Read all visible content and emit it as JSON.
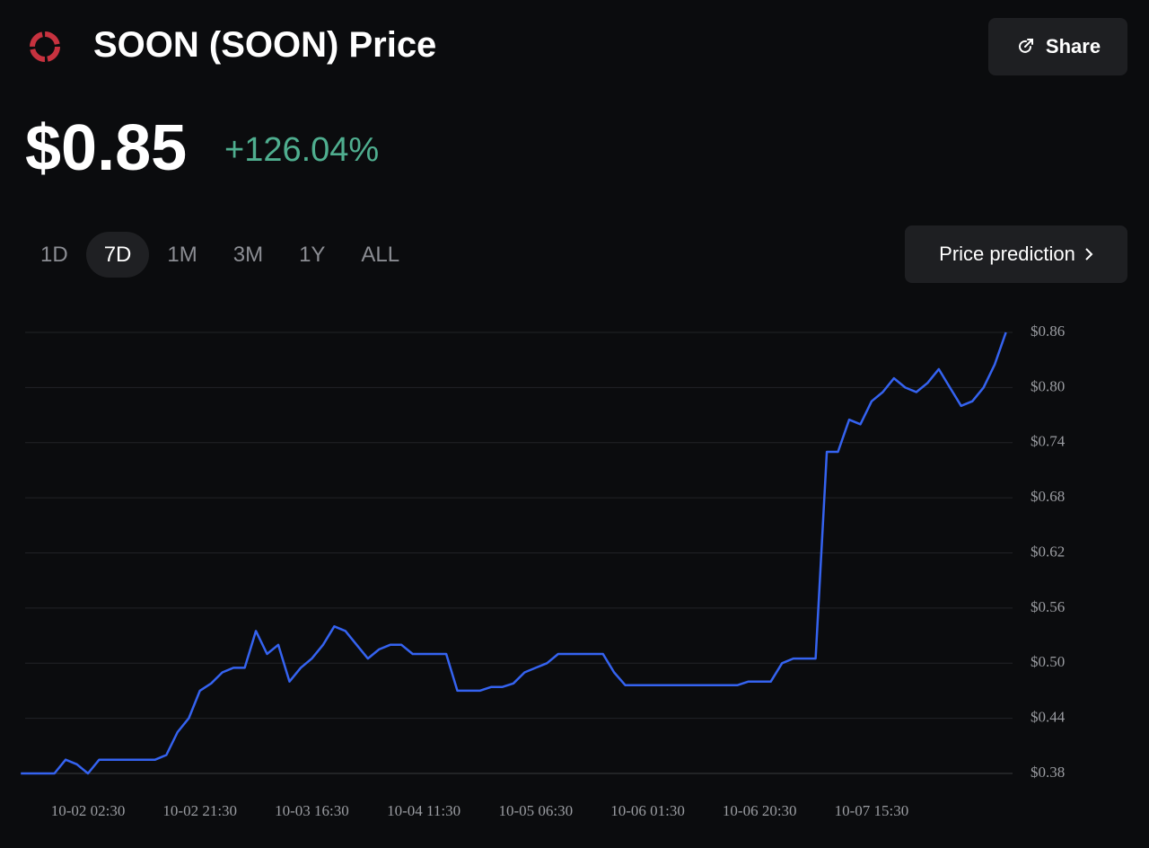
{
  "header": {
    "title": "SOON (SOON) Price",
    "share": "Share",
    "price": "$0.85",
    "change": "+126.04%"
  },
  "tabs": [
    "1D",
    "7D",
    "1M",
    "3M",
    "1Y",
    "ALL"
  ],
  "prediction": "Price prediction",
  "chart_data": {
    "type": "line",
    "categories": [
      null,
      null,
      null,
      null,
      null,
      null,
      "10-02 02:30",
      null,
      null,
      null,
      null,
      null,
      null,
      null,
      null,
      null,
      "10-02 21:30",
      null,
      null,
      null,
      null,
      null,
      null,
      null,
      null,
      null,
      "10-03 16:30",
      null,
      null,
      null,
      null,
      null,
      null,
      null,
      null,
      null,
      "10-04 11:30",
      null,
      null,
      null,
      null,
      null,
      null,
      null,
      null,
      null,
      "10-05 06:30",
      null,
      null,
      null,
      null,
      null,
      null,
      null,
      null,
      null,
      "10-06 01:30",
      null,
      null,
      null,
      null,
      null,
      null,
      null,
      null,
      null,
      "10-06 20:30",
      null,
      null,
      null,
      null,
      null,
      null,
      null,
      null,
      null,
      "10-07 15:30",
      null,
      null,
      null,
      null,
      null,
      null,
      null,
      null,
      null,
      null,
      null,
      null
    ],
    "series": [
      {
        "color": "#3563f0",
        "values": [
          0.38,
          0.38,
          0.38,
          0.38,
          0.395,
          0.39,
          0.38,
          0.395,
          0.395,
          0.395,
          0.395,
          0.395,
          0.395,
          0.4,
          0.425,
          0.44,
          0.47,
          0.478,
          0.49,
          0.495,
          0.495,
          0.535,
          0.51,
          0.52,
          0.48,
          0.495,
          0.505,
          0.52,
          0.54,
          0.535,
          0.52,
          0.505,
          0.515,
          0.52,
          0.52,
          0.51,
          0.51,
          0.51,
          0.51,
          0.47,
          0.47,
          0.47,
          0.474,
          0.474,
          0.478,
          0.49,
          0.495,
          0.5,
          0.51,
          0.51,
          0.51,
          0.51,
          0.51,
          0.49,
          0.476,
          0.476,
          0.476,
          0.476,
          0.476,
          0.476,
          0.476,
          0.476,
          0.476,
          0.476,
          0.476,
          0.48,
          0.48,
          0.48,
          0.5,
          0.505,
          0.505,
          0.505,
          0.73,
          0.73,
          0.765,
          0.76,
          0.785,
          0.795,
          0.81,
          0.8,
          0.795,
          0.805,
          0.82,
          0.8,
          0.78,
          0.785,
          0.8,
          0.825,
          0.86
        ]
      }
    ],
    "ylim": [
      0.38,
      0.86
    ],
    "yticks": [
      {
        "value": 0.38,
        "label": "$0.38"
      },
      {
        "value": 0.44,
        "label": "$0.44"
      },
      {
        "value": 0.5,
        "label": "$0.50"
      },
      {
        "value": 0.56,
        "label": "$0.56"
      },
      {
        "value": 0.62,
        "label": "$0.62"
      },
      {
        "value": 0.68,
        "label": "$0.68"
      },
      {
        "value": 0.74,
        "label": "$0.74"
      },
      {
        "value": 0.8,
        "label": "$0.80"
      },
      {
        "value": 0.86,
        "label": "$0.86"
      }
    ],
    "grid": true
  }
}
